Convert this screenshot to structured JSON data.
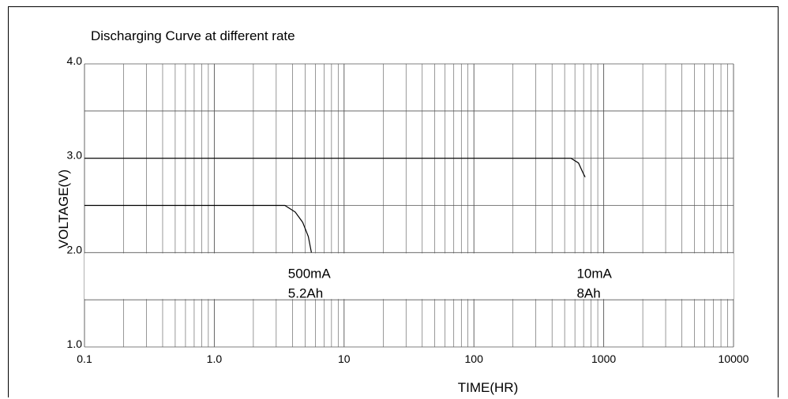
{
  "chart_data": {
    "type": "line",
    "title": "Discharging Curve at different rate",
    "xlabel": "TIME(HR)",
    "ylabel": "VOLTAGE(V)",
    "x_scale": "log",
    "xlim": [
      0.1,
      10000
    ],
    "ylim": [
      1.0,
      4.0
    ],
    "x_ticks": [
      "0.1",
      "1.0",
      "10",
      "100",
      "1000",
      "10000"
    ],
    "y_ticks": [
      "1.0",
      "2.0",
      "3.0",
      "4.0"
    ],
    "grid": true,
    "series": [
      {
        "name": "500mA",
        "x": [
          0.1,
          3.5,
          4.2,
          4.8,
          5.3,
          5.6
        ],
        "y": [
          2.5,
          2.5,
          2.43,
          2.32,
          2.17,
          2.0
        ]
      },
      {
        "name": "10mA",
        "x": [
          0.1,
          560,
          640,
          690,
          720
        ],
        "y": [
          3.0,
          3.0,
          2.95,
          2.85,
          2.8
        ]
      }
    ],
    "annotations": [
      {
        "lines": [
          "500mA",
          "5.2Ah"
        ],
        "x": 3.7,
        "y": 1.73
      },
      {
        "lines": [
          "10mA",
          "8Ah"
        ],
        "x": 620,
        "y": 1.73
      }
    ]
  }
}
